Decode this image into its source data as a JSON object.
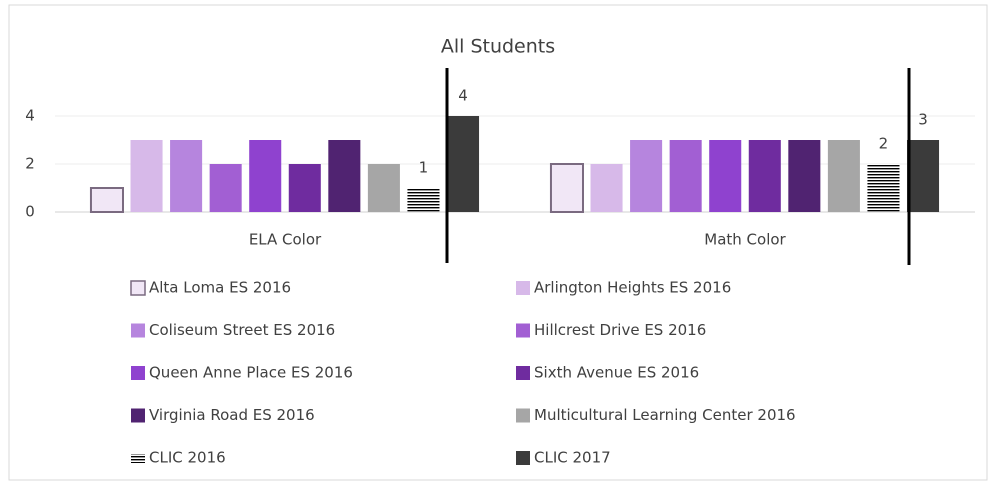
{
  "chart_data": {
    "type": "bar",
    "title": "All Students",
    "categories": [
      "ELA Color",
      "Math Color"
    ],
    "ylim": [
      0,
      5
    ],
    "yticks": [
      0,
      2,
      4
    ],
    "grid": true,
    "series": [
      {
        "name": "Alta Loma ES 2016",
        "color": "#f1e7f6",
        "edgecolor": "#7a6a80",
        "values": [
          1,
          2
        ]
      },
      {
        "name": "Arlington Heights ES 2016",
        "color": "#d7b9e9",
        "values": [
          3,
          2
        ]
      },
      {
        "name": "Coliseum Street ES 2016",
        "color": "#b685de",
        "values": [
          3,
          3
        ]
      },
      {
        "name": "Hillcrest Drive ES 2016",
        "color": "#a25fd3",
        "values": [
          2,
          3
        ]
      },
      {
        "name": "Queen Anne Place ES 2016",
        "color": "#8f42cf",
        "values": [
          3,
          3
        ]
      },
      {
        "name": "Sixth Avenue ES 2016",
        "color": "#6f2c9f",
        "values": [
          2,
          3
        ]
      },
      {
        "name": "Virginia Road ES 2016",
        "color": "#502371",
        "values": [
          3,
          3
        ]
      },
      {
        "name": "Multicultural Learning Center 2016",
        "color": "#a6a6a6",
        "values": [
          2,
          3
        ]
      },
      {
        "name": "CLIC 2016",
        "color": "#1a1a1a",
        "pattern": "horizontal-lines",
        "data_labels": true,
        "values": [
          1,
          2
        ]
      },
      {
        "name": "CLIC 2017",
        "color": "#3b3b3b",
        "data_labels": true,
        "values": [
          4,
          3
        ]
      }
    ]
  }
}
